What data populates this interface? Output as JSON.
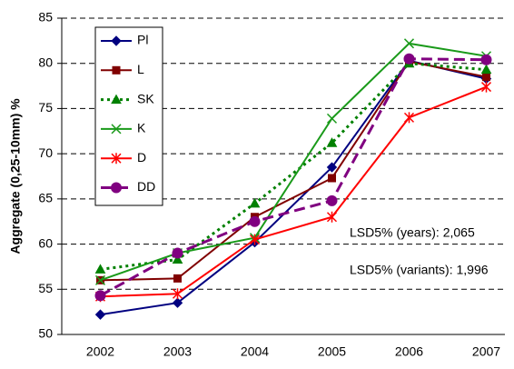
{
  "chart_data": {
    "type": "line",
    "y_label": "Aggregate (0,25-10mm) %",
    "categories": [
      "2002",
      "2003",
      "2004",
      "2005",
      "2006",
      "2007"
    ],
    "series": [
      {
        "name": "Pl",
        "color": "#000080",
        "marker": "diamond",
        "dash": "solid",
        "values": [
          52.2,
          53.5,
          60.2,
          68.5,
          80.3,
          78.3
        ]
      },
      {
        "name": "L",
        "color": "#800000",
        "marker": "square",
        "dash": "solid",
        "values": [
          56,
          56.2,
          63,
          67.3,
          80.2,
          78.5
        ]
      },
      {
        "name": "SK",
        "color": "#008000",
        "marker": "triangle",
        "dash": "dotted",
        "values": [
          57.2,
          58.3,
          64.5,
          71.2,
          80,
          79.3
        ]
      },
      {
        "name": "K",
        "color": "#1a9a1a",
        "marker": "x",
        "dash": "solid",
        "values": [
          56,
          59,
          60.7,
          73.9,
          82.2,
          80.8
        ]
      },
      {
        "name": "D",
        "color": "#ff0000",
        "marker": "star",
        "dash": "solid",
        "values": [
          54.2,
          54.5,
          60.5,
          63,
          74,
          77.4
        ]
      },
      {
        "name": "DD",
        "color": "#800080",
        "marker": "circle",
        "dash": "dashed",
        "values": [
          54.3,
          59,
          62.5,
          64.8,
          80.5,
          80.4
        ]
      }
    ],
    "annotations": [
      "LSD5% (years): 2,065",
      "LSD5% (variants): 1,996"
    ],
    "ylim": [
      50,
      85
    ],
    "yticks": [
      50,
      55,
      60,
      65,
      70,
      75,
      80,
      85
    ],
    "grid": true
  }
}
